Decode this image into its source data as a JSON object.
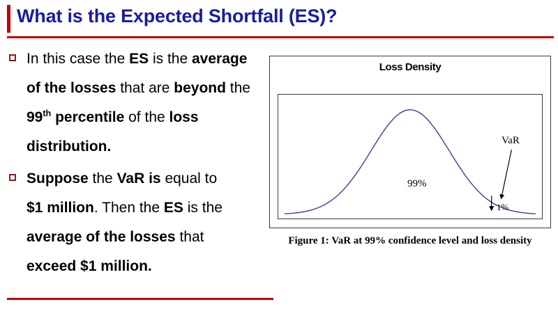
{
  "slide": {
    "title": "What is the Expected Shortfall (ES)?",
    "accent_color": "#c00000",
    "title_color": "#1b1b9e",
    "bullets": [
      {
        "segments": [
          {
            "text": "In this case the ",
            "bold": false
          },
          {
            "text": "ES",
            "bold": true
          },
          {
            "text": " is the ",
            "bold": false
          },
          {
            "text": "average of the losses",
            "bold": true
          },
          {
            "text": " that are ",
            "bold": false
          },
          {
            "text": "beyond",
            "bold": true
          },
          {
            "text": " the ",
            "bold": false
          },
          {
            "text": "99",
            "bold": true
          },
          {
            "text": "th",
            "bold": true,
            "superscript": true
          },
          {
            "text": " percentile",
            "bold": true
          },
          {
            "text": " of the ",
            "bold": false
          },
          {
            "text": "loss distribution.",
            "bold": true
          }
        ]
      },
      {
        "segments": [
          {
            "text": "Suppose",
            "bold": true
          },
          {
            "text": " the ",
            "bold": false
          },
          {
            "text": "VaR is",
            "bold": true
          },
          {
            "text": " equal to ",
            "bold": false
          },
          {
            "text": "$1 million",
            "bold": true
          },
          {
            "text": ". Then the ",
            "bold": false
          },
          {
            "text": "ES",
            "bold": true
          },
          {
            "text": " is the ",
            "bold": false
          },
          {
            "text": "average of the losses",
            "bold": true
          },
          {
            "text": " that ",
            "bold": false
          },
          {
            "text": "exceed $1 million.",
            "bold": true
          }
        ]
      }
    ]
  },
  "figure": {
    "title": "Loss Density",
    "area_label": "99%",
    "var_label": "VaR",
    "tail_label": "1%",
    "caption": "Figure 1: VaR at 99% confidence level and loss density"
  },
  "chart_data": {
    "type": "line",
    "title": "Loss Density",
    "description": "Schematic bell-shaped (Gaussian) loss density; the area left of VaR is 99%, the right tail beyond VaR is 1%",
    "curve": {
      "shape": "gaussian",
      "mean": 0,
      "sigma": 1,
      "x_min": -3.2,
      "x_max": 3.2
    },
    "var_quantile_sigma": 2.326,
    "regions": [
      {
        "label": "99%",
        "description": "area to the left of VaR"
      },
      {
        "label": "1%",
        "description": "tail area to the right of VaR"
      }
    ],
    "annotations": [
      "VaR"
    ],
    "curve_color": "#3b3b9e",
    "legend": "none",
    "grid": false
  }
}
